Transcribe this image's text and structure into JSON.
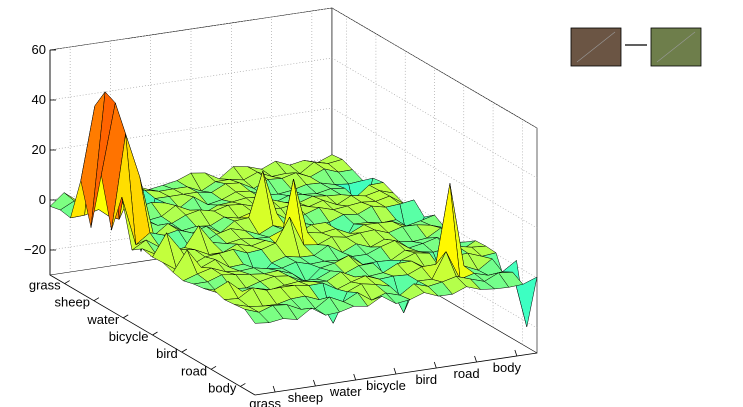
{
  "chart_data": {
    "type": "surface",
    "title": "",
    "xlabel": "",
    "ylabel": "",
    "zlabel": "",
    "grid": true,
    "colormap": "jet",
    "categories": [
      "grass",
      "sheep",
      "water",
      "bicycle",
      "bird",
      "road",
      "body"
    ],
    "x_ticks": [
      "grass",
      "sheep",
      "water",
      "bicycle",
      "bird",
      "road",
      "body"
    ],
    "y_ticks": [
      "grass",
      "sheep",
      "water",
      "bicycle",
      "bird",
      "road",
      "body"
    ],
    "z_ticks": [
      "60",
      "40",
      "20",
      "0",
      "−20"
    ],
    "zlim": [
      -30,
      60
    ],
    "grid_size": [
      21,
      21
    ],
    "background": 0,
    "noise_amplitude": 2.5,
    "peaks": [
      {
        "i": 0,
        "j": 3,
        "value": 15
      },
      {
        "i": 0,
        "j": 5,
        "value": 22
      },
      {
        "i": 0,
        "j": 7,
        "value": 18
      },
      {
        "i": 1,
        "j": 3,
        "value": 44
      },
      {
        "i": 1,
        "j": 4,
        "value": 52
      },
      {
        "i": 1,
        "j": 5,
        "value": 50
      },
      {
        "i": 1,
        "j": 6,
        "value": 40
      },
      {
        "i": 2,
        "j": 5,
        "value": 25
      },
      {
        "i": 2,
        "j": 6,
        "value": 22
      },
      {
        "i": 3,
        "j": 4,
        "value": 12
      },
      {
        "i": 1,
        "j": 10,
        "value": 10
      },
      {
        "i": 1,
        "j": 12,
        "value": 8
      },
      {
        "i": 1,
        "j": 16,
        "value": 5
      },
      {
        "i": 2,
        "j": 17,
        "value": 4
      },
      {
        "i": 4,
        "j": 9,
        "value": 8
      },
      {
        "i": 10,
        "j": 7,
        "value": 20
      },
      {
        "i": 10,
        "j": 10,
        "value": 24
      },
      {
        "i": 9,
        "j": 11,
        "value": 12
      },
      {
        "i": 16,
        "j": 17,
        "value": 34
      },
      {
        "i": 15,
        "j": 18,
        "value": 10
      },
      {
        "i": 3,
        "j": 8,
        "value": -8
      },
      {
        "i": 5,
        "j": 2,
        "value": -20
      },
      {
        "i": 19,
        "j": 4,
        "value": -18
      },
      {
        "i": 19,
        "j": 9,
        "value": -15
      },
      {
        "i": 20,
        "j": 12,
        "value": -16
      },
      {
        "i": 20,
        "j": 17,
        "value": -10
      },
      {
        "i": 20,
        "j": 19,
        "value": -22
      },
      {
        "i": 17,
        "j": 15,
        "value": -10
      },
      {
        "i": 7,
        "j": 18,
        "value": -12
      },
      {
        "i": 12,
        "j": 18,
        "value": -12
      },
      {
        "i": 13,
        "j": 15,
        "value": -8
      },
      {
        "i": 6,
        "j": 12,
        "value": -8
      },
      {
        "i": 8,
        "j": 14,
        "value": -6
      },
      {
        "i": 14,
        "j": 9,
        "value": -10
      }
    ],
    "swatches": [
      {
        "name": "color-swatch-left",
        "color": "#6b5544"
      },
      {
        "name": "color-swatch-right",
        "color": "#6e7e4b"
      }
    ]
  }
}
